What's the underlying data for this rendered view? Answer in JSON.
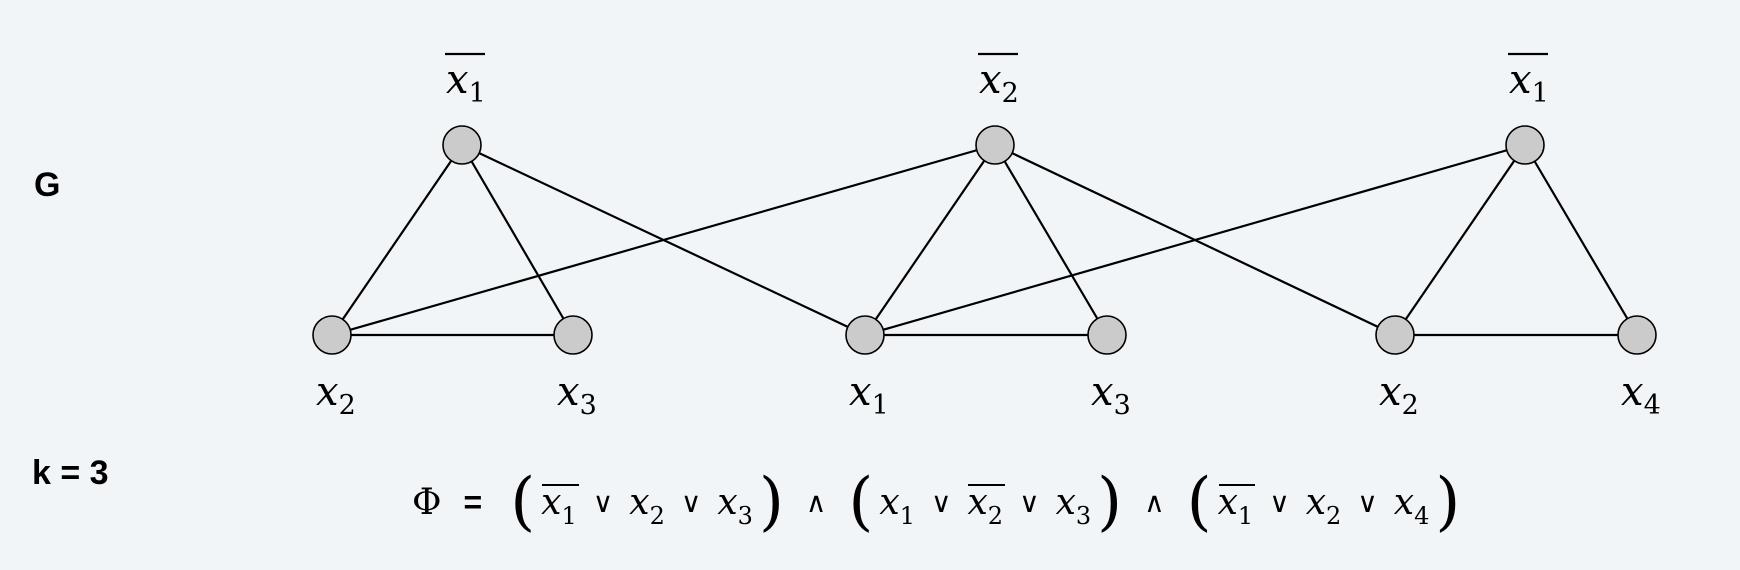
{
  "graph_label": "G",
  "k_label": "k = 3",
  "nodes": [
    {
      "id": "n1",
      "var": "x",
      "sub": "1",
      "neg": true
    },
    {
      "id": "n2",
      "var": "x",
      "sub": "2",
      "neg": false
    },
    {
      "id": "n3",
      "var": "x",
      "sub": "3",
      "neg": false
    },
    {
      "id": "n4",
      "var": "x",
      "sub": "2",
      "neg": true
    },
    {
      "id": "n5",
      "var": "x",
      "sub": "1",
      "neg": false
    },
    {
      "id": "n6",
      "var": "x",
      "sub": "3",
      "neg": false
    },
    {
      "id": "n7",
      "var": "x",
      "sub": "1",
      "neg": true
    },
    {
      "id": "n8",
      "var": "x",
      "sub": "2",
      "neg": false
    },
    {
      "id": "n9",
      "var": "x",
      "sub": "4",
      "neg": false
    }
  ],
  "edges": [
    [
      "n1",
      "n2"
    ],
    [
      "n1",
      "n3"
    ],
    [
      "n2",
      "n3"
    ],
    [
      "n4",
      "n5"
    ],
    [
      "n4",
      "n6"
    ],
    [
      "n5",
      "n6"
    ],
    [
      "n7",
      "n8"
    ],
    [
      "n7",
      "n9"
    ],
    [
      "n8",
      "n9"
    ],
    [
      "n1",
      "n5"
    ],
    [
      "n2",
      "n4"
    ],
    [
      "n4",
      "n8"
    ],
    [
      "n5",
      "n7"
    ]
  ],
  "formula": {
    "symbol": "Φ",
    "equals": "=",
    "and": "∧",
    "or": "∨",
    "clauses": [
      [
        {
          "var": "x",
          "sub": "1",
          "neg": true
        },
        {
          "var": "x",
          "sub": "2",
          "neg": false
        },
        {
          "var": "x",
          "sub": "3",
          "neg": false
        }
      ],
      [
        {
          "var": "x",
          "sub": "1",
          "neg": false
        },
        {
          "var": "x",
          "sub": "2",
          "neg": true
        },
        {
          "var": "x",
          "sub": "3",
          "neg": false
        }
      ],
      [
        {
          "var": "x",
          "sub": "1",
          "neg": true
        },
        {
          "var": "x",
          "sub": "2",
          "neg": false
        },
        {
          "var": "x",
          "sub": "4",
          "neg": false
        }
      ]
    ]
  }
}
